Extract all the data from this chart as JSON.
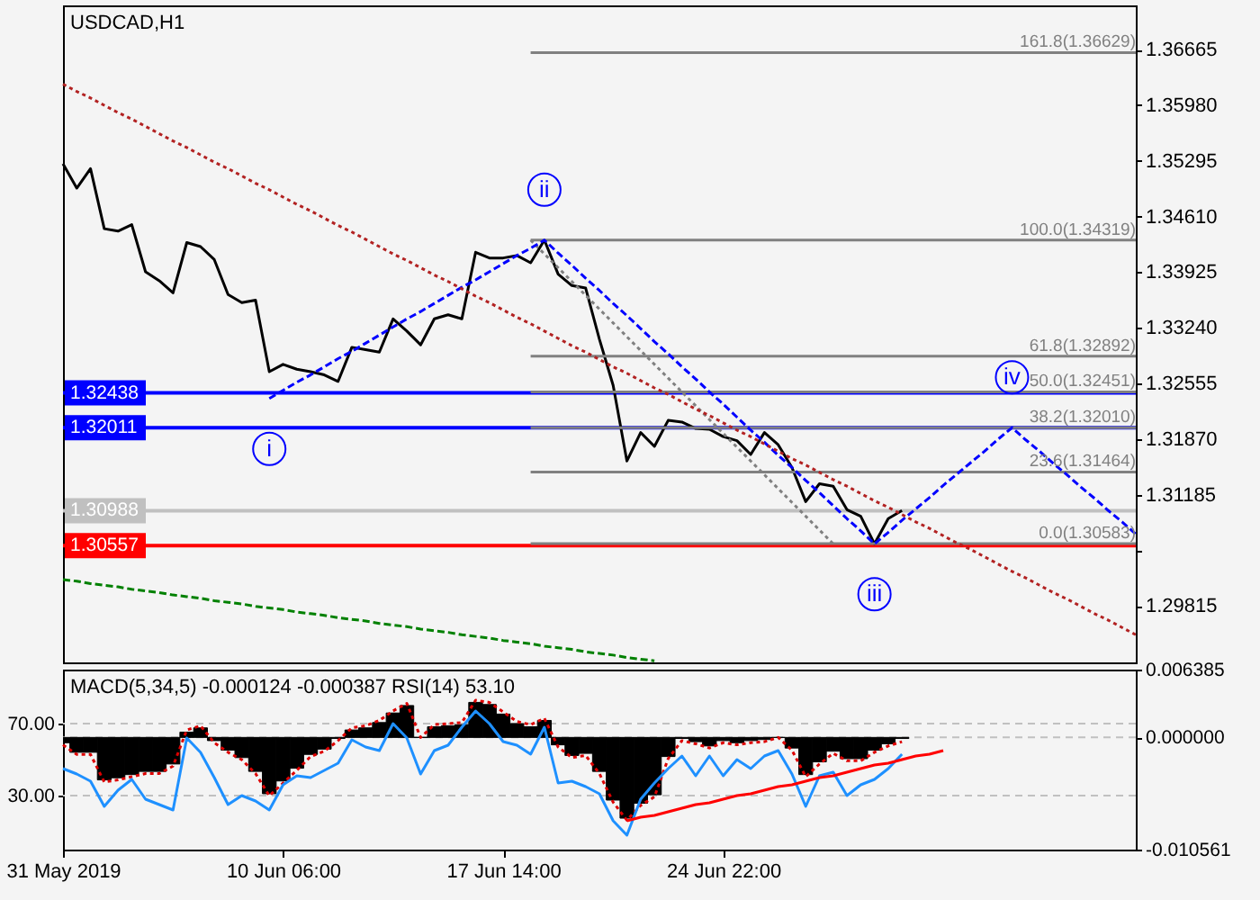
{
  "chart_data": [
    {
      "type": "line",
      "title": "USDCAD,H1",
      "categories": [
        null,
        null,
        null,
        null,
        null,
        null,
        null,
        null,
        null,
        null,
        null,
        null,
        null,
        null,
        null,
        null,
        null,
        null,
        null,
        null,
        null,
        null,
        null,
        null,
        null,
        null,
        null,
        null,
        null,
        null,
        null,
        null,
        null,
        null,
        null,
        null,
        null,
        null,
        null,
        null,
        null,
        null,
        null,
        null,
        null,
        null,
        null,
        null,
        null,
        null,
        null,
        null,
        null,
        null,
        null,
        null,
        null,
        null,
        null,
        null,
        null,
        null,
        null,
        null,
        null,
        null,
        null,
        null,
        null,
        null,
        null,
        null,
        null,
        null,
        null,
        null,
        null,
        null,
        null
      ],
      "ylim": [
        1.2912,
        1.3721
      ],
      "yticks": [
        1.36665,
        {
          "value": 1.3598,
          "label": "1.35980"
        },
        1.35295,
        {
          "value": 1.3461,
          "label": "1.34610"
        },
        1.33925,
        {
          "value": 1.3324,
          "label": "1.33240"
        },
        1.32555,
        {
          "value": 1.3187,
          "label": "1.31870"
        },
        1.31185,
        {
          "value": 1.305,
          "label": null
        },
        1.29815
      ],
      "tick_labels": "y",
      "ref_lines": [
        {
          "axis": "y",
          "value": 1.32438,
          "label": "1.32438",
          "color": "#0000ff"
        },
        {
          "axis": "y",
          "value": 1.32011,
          "label": "1.32011",
          "color": "#0000ff"
        },
        {
          "axis": "y",
          "value": 1.30988,
          "label": "1.30988",
          "color": "#c0c0c0"
        },
        {
          "axis": "y",
          "value": 1.30557,
          "label": "1.30557",
          "color": "#ff0000"
        }
      ],
      "annotations": [
        {
          "text": "i",
          "y": 1.3237
        },
        {
          "text": "ii",
          "y": 1.3432
        },
        {
          "text": "iii",
          "y": 1.3058
        },
        {
          "text": "iv",
          "y": 1.3201
        }
      ],
      "series": [
        {
          "color": "#000000",
          "values": [
            1.3526,
            1.3496,
            1.352,
            1.3446,
            1.3443,
            1.3451,
            1.3393,
            1.3382,
            1.3367,
            1.3429,
            1.3424,
            1.3408,
            1.3365,
            1.3355,
            1.3358,
            1.327,
            1.3279,
            1.3273,
            1.327,
            1.3266,
            1.3258,
            1.33,
            1.3297,
            1.3294,
            1.3335,
            1.332,
            1.3303,
            1.3335,
            1.334,
            1.3335,
            1.3417,
            1.341,
            1.341,
            1.3413,
            1.3404,
            1.3432,
            1.339,
            1.3376,
            1.3373,
            1.331,
            1.3253,
            1.316,
            1.3195,
            1.3178,
            1.321,
            1.3208,
            1.32,
            1.3199,
            1.319,
            1.3185,
            1.3168,
            1.3195,
            1.318,
            1.3152,
            1.311,
            1.3132,
            1.3129,
            1.31,
            1.3092,
            1.3058,
            1.3089,
            1.3099,
            null,
            null,
            null,
            null,
            null,
            null,
            null,
            null,
            null,
            null,
            null,
            null,
            null,
            null,
            null,
            null,
            null
          ]
        },
        {
          "name": "161.8(1.36629)",
          "color": "#808080",
          "values": [
            null,
            null,
            null,
            null,
            null,
            null,
            null,
            null,
            null,
            null,
            null,
            null,
            null,
            null,
            null,
            null,
            null,
            null,
            null,
            null,
            null,
            null,
            null,
            null,
            null,
            null,
            null,
            null,
            null,
            null,
            null,
            null,
            null,
            null,
            1.36629,
            1.36629,
            1.36629,
            1.36629,
            1.36629,
            1.36629,
            1.36629,
            1.36629,
            1.36629,
            1.36629,
            1.36629,
            1.36629,
            1.36629,
            1.36629,
            1.36629,
            1.36629,
            1.36629,
            1.36629,
            1.36629,
            1.36629,
            1.36629,
            1.36629,
            1.36629,
            1.36629,
            1.36629,
            1.36629,
            1.36629,
            1.36629,
            1.36629,
            1.36629,
            1.36629,
            1.36629,
            1.36629,
            1.36629,
            1.36629,
            1.36629,
            1.36629,
            1.36629,
            1.36629,
            1.36629,
            1.36629,
            1.36629,
            1.36629,
            1.36629,
            1.36629
          ]
        },
        {
          "name": "100.0(1.34319)",
          "color": "#808080",
          "values": [
            null,
            null,
            null,
            null,
            null,
            null,
            null,
            null,
            null,
            null,
            null,
            null,
            null,
            null,
            null,
            null,
            null,
            null,
            null,
            null,
            null,
            null,
            null,
            null,
            null,
            null,
            null,
            null,
            null,
            null,
            null,
            null,
            null,
            null,
            1.34319,
            1.34319,
            1.34319,
            1.34319,
            1.34319,
            1.34319,
            1.34319,
            1.34319,
            1.34319,
            1.34319,
            1.34319,
            1.34319,
            1.34319,
            1.34319,
            1.34319,
            1.34319,
            1.34319,
            1.34319,
            1.34319,
            1.34319,
            1.34319,
            1.34319,
            1.34319,
            1.34319,
            1.34319,
            1.34319,
            1.34319,
            1.34319,
            1.34319,
            1.34319,
            1.34319,
            1.34319,
            1.34319,
            1.34319,
            1.34319,
            1.34319,
            1.34319,
            1.34319,
            1.34319,
            1.34319,
            1.34319,
            1.34319,
            1.34319,
            1.34319,
            1.34319
          ]
        },
        {
          "name": "61.8(1.32892)",
          "color": "#808080",
          "values": [
            null,
            null,
            null,
            null,
            null,
            null,
            null,
            null,
            null,
            null,
            null,
            null,
            null,
            null,
            null,
            null,
            null,
            null,
            null,
            null,
            null,
            null,
            null,
            null,
            null,
            null,
            null,
            null,
            null,
            null,
            null,
            null,
            null,
            null,
            1.32892,
            1.32892,
            1.32892,
            1.32892,
            1.32892,
            1.32892,
            1.32892,
            1.32892,
            1.32892,
            1.32892,
            1.32892,
            1.32892,
            1.32892,
            1.32892,
            1.32892,
            1.32892,
            1.32892,
            1.32892,
            1.32892,
            1.32892,
            1.32892,
            1.32892,
            1.32892,
            1.32892,
            1.32892,
            1.32892,
            1.32892,
            1.32892,
            1.32892,
            1.32892,
            1.32892,
            1.32892,
            1.32892,
            1.32892,
            1.32892,
            1.32892,
            1.32892,
            1.32892,
            1.32892,
            1.32892,
            1.32892,
            1.32892,
            1.32892,
            1.32892,
            1.32892
          ]
        },
        {
          "name": "50.0(1.32451)",
          "color": "#808080",
          "values": [
            null,
            null,
            null,
            null,
            null,
            null,
            null,
            null,
            null,
            null,
            null,
            null,
            null,
            null,
            null,
            null,
            null,
            null,
            null,
            null,
            null,
            null,
            null,
            null,
            null,
            null,
            null,
            null,
            null,
            null,
            null,
            null,
            null,
            null,
            1.32451,
            1.32451,
            1.32451,
            1.32451,
            1.32451,
            1.32451,
            1.32451,
            1.32451,
            1.32451,
            1.32451,
            1.32451,
            1.32451,
            1.32451,
            1.32451,
            1.32451,
            1.32451,
            1.32451,
            1.32451,
            1.32451,
            1.32451,
            1.32451,
            1.32451,
            1.32451,
            1.32451,
            1.32451,
            1.32451,
            1.32451,
            1.32451,
            1.32451,
            1.32451,
            1.32451,
            1.32451,
            1.32451,
            1.32451,
            1.32451,
            1.32451,
            1.32451,
            1.32451,
            1.32451,
            1.32451,
            1.32451,
            1.32451,
            1.32451,
            1.32451,
            1.32451
          ]
        },
        {
          "name": "38.2(1.32010)",
          "color": "#808080",
          "values": [
            null,
            null,
            null,
            null,
            null,
            null,
            null,
            null,
            null,
            null,
            null,
            null,
            null,
            null,
            null,
            null,
            null,
            null,
            null,
            null,
            null,
            null,
            null,
            null,
            null,
            null,
            null,
            null,
            null,
            null,
            null,
            null,
            null,
            null,
            1.3201,
            1.3201,
            1.3201,
            1.3201,
            1.3201,
            1.3201,
            1.3201,
            1.3201,
            1.3201,
            1.3201,
            1.3201,
            1.3201,
            1.3201,
            1.3201,
            1.3201,
            1.3201,
            1.3201,
            1.3201,
            1.3201,
            1.3201,
            1.3201,
            1.3201,
            1.3201,
            1.3201,
            1.3201,
            1.3201,
            1.3201,
            1.3201,
            1.3201,
            1.3201,
            1.3201,
            1.3201,
            1.3201,
            1.3201,
            1.3201,
            1.3201,
            1.3201,
            1.3201,
            1.3201,
            1.3201,
            1.3201,
            1.3201,
            1.3201,
            1.3201,
            1.3201
          ]
        },
        {
          "name": "23.6(1.31464)",
          "color": "#808080",
          "values": [
            null,
            null,
            null,
            null,
            null,
            null,
            null,
            null,
            null,
            null,
            null,
            null,
            null,
            null,
            null,
            null,
            null,
            null,
            null,
            null,
            null,
            null,
            null,
            null,
            null,
            null,
            null,
            null,
            null,
            null,
            null,
            null,
            null,
            null,
            1.31464,
            1.31464,
            1.31464,
            1.31464,
            1.31464,
            1.31464,
            1.31464,
            1.31464,
            1.31464,
            1.31464,
            1.31464,
            1.31464,
            1.31464,
            1.31464,
            1.31464,
            1.31464,
            1.31464,
            1.31464,
            1.31464,
            1.31464,
            1.31464,
            1.31464,
            1.31464,
            1.31464,
            1.31464,
            1.31464,
            1.31464,
            1.31464,
            1.31464,
            1.31464,
            1.31464,
            1.31464,
            1.31464,
            1.31464,
            1.31464,
            1.31464,
            1.31464,
            1.31464,
            1.31464,
            1.31464,
            1.31464,
            1.31464,
            1.31464,
            1.31464,
            1.31464
          ]
        },
        {
          "name": "0.0(1.30583)",
          "color": "#808080",
          "values": [
            null,
            null,
            null,
            null,
            null,
            null,
            null,
            null,
            null,
            null,
            null,
            null,
            null,
            null,
            null,
            null,
            null,
            null,
            null,
            null,
            null,
            null,
            null,
            null,
            null,
            null,
            null,
            null,
            null,
            null,
            null,
            null,
            null,
            null,
            1.30583,
            1.30583,
            1.30583,
            1.30583,
            1.30583,
            1.30583,
            1.30583,
            1.30583,
            1.30583,
            1.30583,
            1.30583,
            1.30583,
            1.30583,
            1.30583,
            1.30583,
            1.30583,
            1.30583,
            1.30583,
            1.30583,
            1.30583,
            1.30583,
            1.30583,
            1.30583,
            1.30583,
            1.30583,
            1.30583,
            1.30583,
            1.30583,
            1.30583,
            1.30583,
            1.30583,
            1.30583,
            1.30583,
            1.30583,
            1.30583,
            1.30583,
            1.30583,
            1.30583,
            1.30583,
            1.30583,
            1.30583,
            1.30583,
            1.30583,
            1.30583,
            1.30583
          ]
        },
        {
          "color": "#808080",
          "line_style": "dotted",
          "values": [
            null,
            null,
            null,
            null,
            null,
            null,
            null,
            null,
            null,
            null,
            null,
            null,
            null,
            null,
            null,
            null,
            null,
            null,
            null,
            null,
            null,
            null,
            null,
            null,
            null,
            null,
            null,
            null,
            null,
            null,
            null,
            null,
            null,
            null,
            1.3432,
            1.3415,
            1.3398,
            1.3381,
            1.3364,
            1.3347,
            1.333,
            1.3313,
            1.3296,
            1.3279,
            1.3262,
            1.3245,
            1.3228,
            1.3211,
            1.3194,
            1.3177,
            1.316,
            1.3143,
            1.3126,
            1.3109,
            1.3092,
            1.3075,
            1.3058,
            null,
            null,
            null,
            null,
            null,
            null,
            null,
            null,
            null,
            null,
            null,
            null,
            null,
            null,
            null,
            null,
            null,
            null,
            null,
            null,
            null,
            null
          ]
        },
        {
          "color": "#0000ff",
          "line_style": "dashed",
          "values": [
            null,
            null,
            null,
            null,
            null,
            null,
            null,
            null,
            null,
            null,
            null,
            null,
            null,
            null,
            null,
            1.3237,
            1.3247,
            1.3257,
            1.3266,
            1.3276,
            1.3286,
            1.3295,
            1.3305,
            1.3315,
            1.3325,
            1.3335,
            1.3344,
            1.3354,
            1.3364,
            1.3374,
            1.3383,
            1.3393,
            1.3403,
            1.3413,
            1.3422,
            1.3432,
            1.3416,
            1.3401,
            1.3385,
            1.337,
            1.3354,
            1.3339,
            1.3323,
            1.3307,
            1.3292,
            1.3276,
            1.3261,
            1.3245,
            1.323,
            1.3214,
            1.3198,
            1.3183,
            1.3167,
            1.3152,
            1.3136,
            1.3121,
            1.3105,
            1.3089,
            1.3074,
            1.3058,
            1.3072,
            1.3087,
            1.3101,
            1.3115,
            1.313,
            1.3144,
            1.3158,
            1.3172,
            1.3187,
            1.3201,
            1.3186,
            1.3172,
            1.3157,
            1.3143,
            1.3128,
            1.3114,
            1.3099,
            1.3085,
            1.307
          ]
        },
        {
          "color": "#b22222",
          "line_style": "dotted",
          "values": [
            1.3624,
            1.3615,
            1.3607,
            1.3598,
            1.3589,
            1.3581,
            1.3572,
            1.3563,
            1.3554,
            1.3546,
            1.3537,
            1.3528,
            1.352,
            1.3511,
            1.3502,
            1.3494,
            1.3485,
            1.3476,
            1.3468,
            1.3459,
            1.345,
            1.3442,
            1.3433,
            1.3424,
            1.3415,
            1.3407,
            1.3398,
            1.3389,
            1.3381,
            1.3372,
            1.3363,
            1.3355,
            1.3346,
            1.3337,
            1.3329,
            1.332,
            1.3311,
            1.3302,
            1.3294,
            1.3285,
            1.3276,
            1.3268,
            1.3259,
            1.325,
            1.3242,
            1.3233,
            1.3224,
            1.3216,
            1.3207,
            1.3198,
            1.319,
            1.3181,
            1.3172,
            1.3163,
            1.3155,
            1.3146,
            1.3137,
            1.3129,
            1.312,
            1.3111,
            1.3103,
            1.3094,
            1.3085,
            1.3077,
            1.3068,
            1.3059,
            1.3051,
            1.3042,
            1.3033,
            1.3024,
            1.3016,
            1.3007,
            1.2998,
            1.299,
            1.2981,
            1.2972,
            1.2964,
            1.2955,
            1.2946
          ]
        },
        {
          "color": "#008000",
          "line_style": "dashed",
          "values": [
            1.3014,
            1.3012,
            1.3009,
            1.3007,
            1.3005,
            1.3002,
            1.3,
            1.2998,
            1.2995,
            1.2993,
            1.2991,
            1.2988,
            1.2986,
            1.2984,
            1.2981,
            1.2979,
            1.2977,
            1.2974,
            1.2972,
            1.297,
            1.2967,
            1.2965,
            1.2963,
            1.296,
            1.2958,
            1.2956,
            1.2953,
            1.2951,
            1.2949,
            1.2946,
            1.2944,
            1.2942,
            1.2939,
            1.2937,
            1.2935,
            1.2932,
            1.293,
            1.2928,
            1.2925,
            1.2923,
            1.2921,
            1.2918,
            1.2916,
            1.2914,
            null,
            null,
            null,
            null,
            null,
            null,
            null,
            null,
            null,
            null,
            null,
            null,
            null,
            null,
            null,
            null,
            null,
            null,
            null,
            null,
            null,
            null,
            null,
            null,
            null,
            null,
            null,
            null,
            null,
            null,
            null,
            null,
            null,
            null,
            null
          ]
        }
      ]
    },
    {
      "type": "line",
      "title": "MACD(5,34,5) -0.000124 -0.000387 RSI(14) 53.10",
      "categories": [
        "31 May 2019",
        null,
        null,
        null,
        null,
        null,
        null,
        null,
        null,
        null,
        null,
        null,
        null,
        null,
        null,
        null,
        "10 Jun 06:00",
        null,
        null,
        null,
        null,
        null,
        null,
        null,
        null,
        null,
        null,
        null,
        null,
        null,
        null,
        null,
        "17 Jun 14:00",
        null,
        null,
        null,
        null,
        null,
        null,
        null,
        null,
        null,
        null,
        null,
        null,
        null,
        null,
        null,
        "24 Jun 22:00",
        null,
        null,
        null,
        null,
        null,
        null,
        null,
        null,
        null,
        null,
        null,
        null,
        null,
        null,
        null,
        null,
        null,
        null,
        null,
        null,
        null,
        null,
        null,
        null,
        null,
        null,
        null,
        null,
        null,
        null
      ],
      "ylim": [
        -0.010561,
        0.006385
      ],
      "yticks": [
        0.006385,
        {
          "value": 0,
          "label": "0.000000"
        },
        -0.010561
      ],
      "y2lim": [
        0,
        100
      ],
      "y2ticks": [
        {
          "value": 70,
          "label": "70.00"
        },
        {
          "value": 30,
          "label": "30.00"
        }
      ],
      "grid": "y",
      "series": [
        {
          "type": "bar",
          "color": "#000000",
          "values": [
            -0.0005,
            -0.0014,
            -0.0014,
            -0.004,
            -0.0038,
            -0.0035,
            -0.0032,
            -0.0032,
            -0.0025,
            0.0005,
            0.0009,
            -0.0003,
            -0.0012,
            -0.0019,
            -0.0032,
            -0.0053,
            -0.0041,
            -0.0029,
            -0.0016,
            -0.0011,
            -0.0001,
            0.0007,
            0.0009,
            0.0014,
            0.0023,
            0.003,
            0,
            0.001,
            0.0011,
            0.0012,
            0.0033,
            0.0031,
            0.0022,
            0.0013,
            0.001,
            0.0016,
            -0.0007,
            -0.0017,
            -0.0015,
            -0.0032,
            -0.0059,
            -0.0076,
            -0.0062,
            -0.0054,
            -0.0018,
            -0.0001,
            -0.0004,
            -0.0008,
            -0.0003,
            -0.0005,
            -0.0003,
            -0.0002,
            0,
            -0.001,
            -0.0035,
            -0.0023,
            -0.0013,
            -0.002,
            -0.002,
            -0.0012,
            -0.0006,
            -0.0001,
            null,
            null,
            null,
            null,
            null,
            null,
            null,
            null,
            null,
            null,
            null,
            null,
            null,
            null,
            null,
            null,
            null
          ]
        },
        {
          "color": "#dd0000",
          "line_style": "dotted",
          "values": [
            -0.0007,
            -0.0016,
            -0.0016,
            -0.0042,
            -0.004,
            -0.0037,
            -0.0034,
            -0.0034,
            -0.0027,
            0.0007,
            0.0011,
            -0.0005,
            -0.0014,
            -0.0021,
            -0.0034,
            -0.0055,
            -0.0043,
            -0.0031,
            -0.0018,
            -0.0013,
            -0.0003,
            0.0009,
            0.0011,
            0.0016,
            0.0025,
            0.0032,
            0,
            0.0012,
            0.0013,
            0.0014,
            0.0035,
            0.0033,
            0.0024,
            0.0015,
            0.0012,
            0.0018,
            -0.0009,
            -0.0019,
            -0.0017,
            -0.0034,
            -0.0061,
            -0.0078,
            -0.0064,
            -0.0056,
            -0.002,
            -0.0003,
            -0.0006,
            -0.001,
            -0.0005,
            -0.0007,
            -0.0005,
            -0.0004,
            0,
            -0.0012,
            -0.0037,
            -0.0025,
            -0.0015,
            -0.0022,
            -0.0022,
            -0.0014,
            -0.0008,
            -0.0004,
            null,
            null,
            null,
            null,
            null,
            null,
            null,
            null,
            null,
            null,
            null,
            null,
            null,
            null,
            null,
            null,
            null
          ]
        },
        {
          "color": "#1e90ff",
          "axis": "y2",
          "values": [
            45,
            42,
            38,
            24,
            33,
            39,
            28,
            25,
            22,
            62,
            54,
            40,
            25,
            30,
            27,
            22,
            36,
            41,
            40,
            44,
            48,
            61,
            57,
            55,
            70,
            62,
            42,
            55,
            58,
            68,
            77,
            70,
            60,
            58,
            53,
            68,
            37,
            38,
            35,
            31,
            16,
            8,
            28,
            37,
            45,
            52,
            41,
            52,
            41,
            50,
            45,
            52,
            55,
            42,
            24,
            41,
            43,
            30,
            36,
            39,
            45,
            53,
            null,
            null,
            null,
            null,
            null,
            null,
            null,
            null,
            null,
            null,
            null,
            null,
            null,
            null,
            null,
            null,
            null
          ]
        },
        {
          "color": "#ff0000",
          "axis": "y2",
          "values": [
            null,
            null,
            null,
            null,
            null,
            null,
            null,
            null,
            null,
            null,
            null,
            null,
            null,
            null,
            null,
            null,
            null,
            null,
            null,
            null,
            null,
            null,
            null,
            null,
            null,
            null,
            null,
            null,
            null,
            null,
            null,
            null,
            null,
            null,
            null,
            null,
            null,
            null,
            null,
            null,
            null,
            16,
            18,
            19,
            21,
            23,
            25,
            26,
            28,
            30,
            31,
            33,
            35,
            36,
            38,
            40,
            41,
            43,
            45,
            47,
            48,
            50,
            52,
            53,
            55,
            null,
            null,
            null,
            null,
            null,
            null,
            null,
            null,
            null,
            null,
            null,
            null,
            null,
            null
          ]
        }
      ]
    }
  ]
}
